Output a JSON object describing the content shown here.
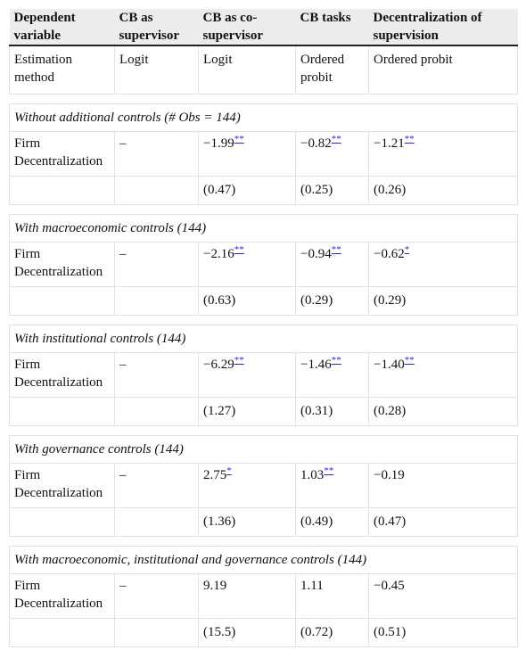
{
  "header": [
    "Dependent variable",
    "CB as supervisor",
    "CB as co-supervisor",
    "CB tasks",
    "Decentralization of supervision"
  ],
  "estimation": [
    "Estimation method",
    "Logit",
    "Logit",
    "Ordered probit",
    "Ordered probit"
  ],
  "sections": [
    {
      "title": "Without additional controls (# Obs = 144)",
      "label": "Firm Decentralization",
      "cells": [
        {
          "value": "–"
        },
        {
          "value": "−1.99",
          "sig": "**"
        },
        {
          "value": "−0.82",
          "sig": "**"
        },
        {
          "value": "−1.21",
          "sig": "**"
        }
      ],
      "se": [
        "(0.47)",
        "(0.25)",
        "(0.26)"
      ]
    },
    {
      "title": "With macroeconomic controls (144)",
      "label": "Firm Decentralization",
      "cells": [
        {
          "value": "–"
        },
        {
          "value": "−2.16",
          "sig": "**"
        },
        {
          "value": "−0.94",
          "sig": "**"
        },
        {
          "value": "−0.62",
          "sig": "*"
        }
      ],
      "se": [
        "(0.63)",
        "(0.29)",
        "(0.29)"
      ]
    },
    {
      "title": "With institutional controls (144)",
      "label": "Firm Decentralization",
      "cells": [
        {
          "value": "–"
        },
        {
          "value": "−6.29",
          "sig": "**"
        },
        {
          "value": "−1.46",
          "sig": "**"
        },
        {
          "value": "−1.40",
          "sig": "**"
        }
      ],
      "se": [
        "(1.27)",
        "(0.31)",
        "(0.28)"
      ]
    },
    {
      "title": "With governance controls (144)",
      "label": "Firm Decentralization",
      "cells": [
        {
          "value": "–"
        },
        {
          "value": "2.75",
          "sig": "*"
        },
        {
          "value": "1.03",
          "sig": "**"
        },
        {
          "value": "−0.19"
        }
      ],
      "se": [
        "(1.36)",
        "(0.49)",
        "(0.47)"
      ]
    },
    {
      "title": "With macroeconomic, institutional and governance controls (144)",
      "label": "Firm Decentralization",
      "cells": [
        {
          "value": "–"
        },
        {
          "value": "9.19"
        },
        {
          "value": "1.11"
        },
        {
          "value": "−0.45"
        }
      ],
      "se": [
        "(15.5)",
        "(0.72)",
        "(0.51)"
      ]
    }
  ]
}
